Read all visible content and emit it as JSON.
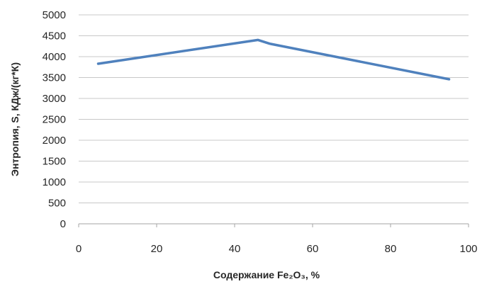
{
  "chart_data": {
    "type": "line",
    "title": "",
    "xlabel": "Содержание Fe₂O₃, %",
    "ylabel": "Энтропия, S, КДж/(кг*К)",
    "xlim": [
      0,
      100
    ],
    "ylim": [
      0,
      5000
    ],
    "xticks": [
      0,
      20,
      40,
      60,
      80,
      100
    ],
    "yticks": [
      0,
      500,
      1000,
      1500,
      2000,
      2500,
      3000,
      3500,
      4000,
      4500,
      5000
    ],
    "grid": {
      "horizontal": true,
      "vertical": false
    },
    "legend": "none",
    "series": [
      {
        "color": "#4f81bd",
        "x": [
          5,
          46,
          49,
          95
        ],
        "y": [
          3830,
          4400,
          4310,
          3460
        ]
      }
    ]
  }
}
